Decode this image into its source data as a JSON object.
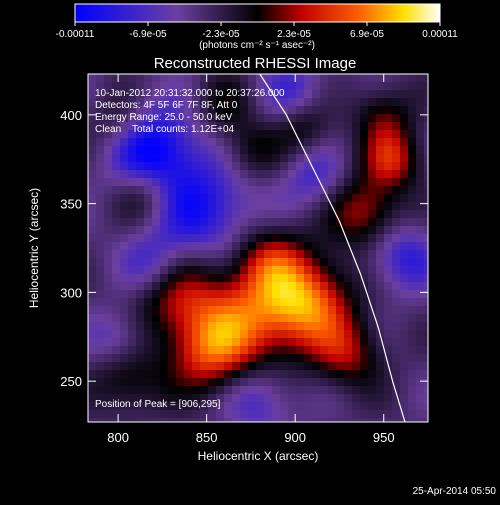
{
  "chart_data": {
    "type": "heatmap",
    "title": "Reconstructed RHESSI Image",
    "xlabel": "Heliocentric X (arcsec)",
    "ylabel": "Heliocentric Y (arcsec)",
    "xlim": [
      783,
      975
    ],
    "ylim": [
      227,
      423
    ],
    "x_ticks": [
      800,
      850,
      900,
      950
    ],
    "y_ticks": [
      250,
      300,
      350,
      400
    ],
    "colorbar": {
      "ticks": [
        "-0.00011",
        "-6.9e-05",
        "-2.3e-05",
        "2.3e-05",
        "6.9e-05",
        "0.00011"
      ],
      "label": "(photons cm⁻² s⁻¹ asec⁻²)",
      "range": [
        -0.00011,
        0.00011
      ]
    },
    "annotations": [
      "10-Jan-2012 20:31:32.000 to 20:37:26.000",
      "Detectors: 4F 5F 6F 7F 8F, Att 0",
      "Energy Range: 25.0 - 50.0 keV",
      "Clean    Total counts: 1.12E+04"
    ],
    "peak_label": "Position of Peak = [906,295]",
    "peak": [
      906,
      295
    ],
    "limb_points": [
      [
        880,
        423
      ],
      [
        895,
        400
      ],
      [
        910,
        370
      ],
      [
        925,
        340
      ],
      [
        937,
        310
      ],
      [
        947,
        280
      ],
      [
        955,
        250
      ],
      [
        962,
        227
      ]
    ],
    "grid": false
  },
  "footer": {
    "date": "25-Apr-2014 05:50"
  },
  "colors": {
    "background": "#000000",
    "text": "#ffffff",
    "colormap": [
      "#0000ff",
      "#6b3fa0",
      "#000000",
      "#c00000",
      "#ff6000",
      "#ffe000",
      "#ffffff"
    ]
  }
}
